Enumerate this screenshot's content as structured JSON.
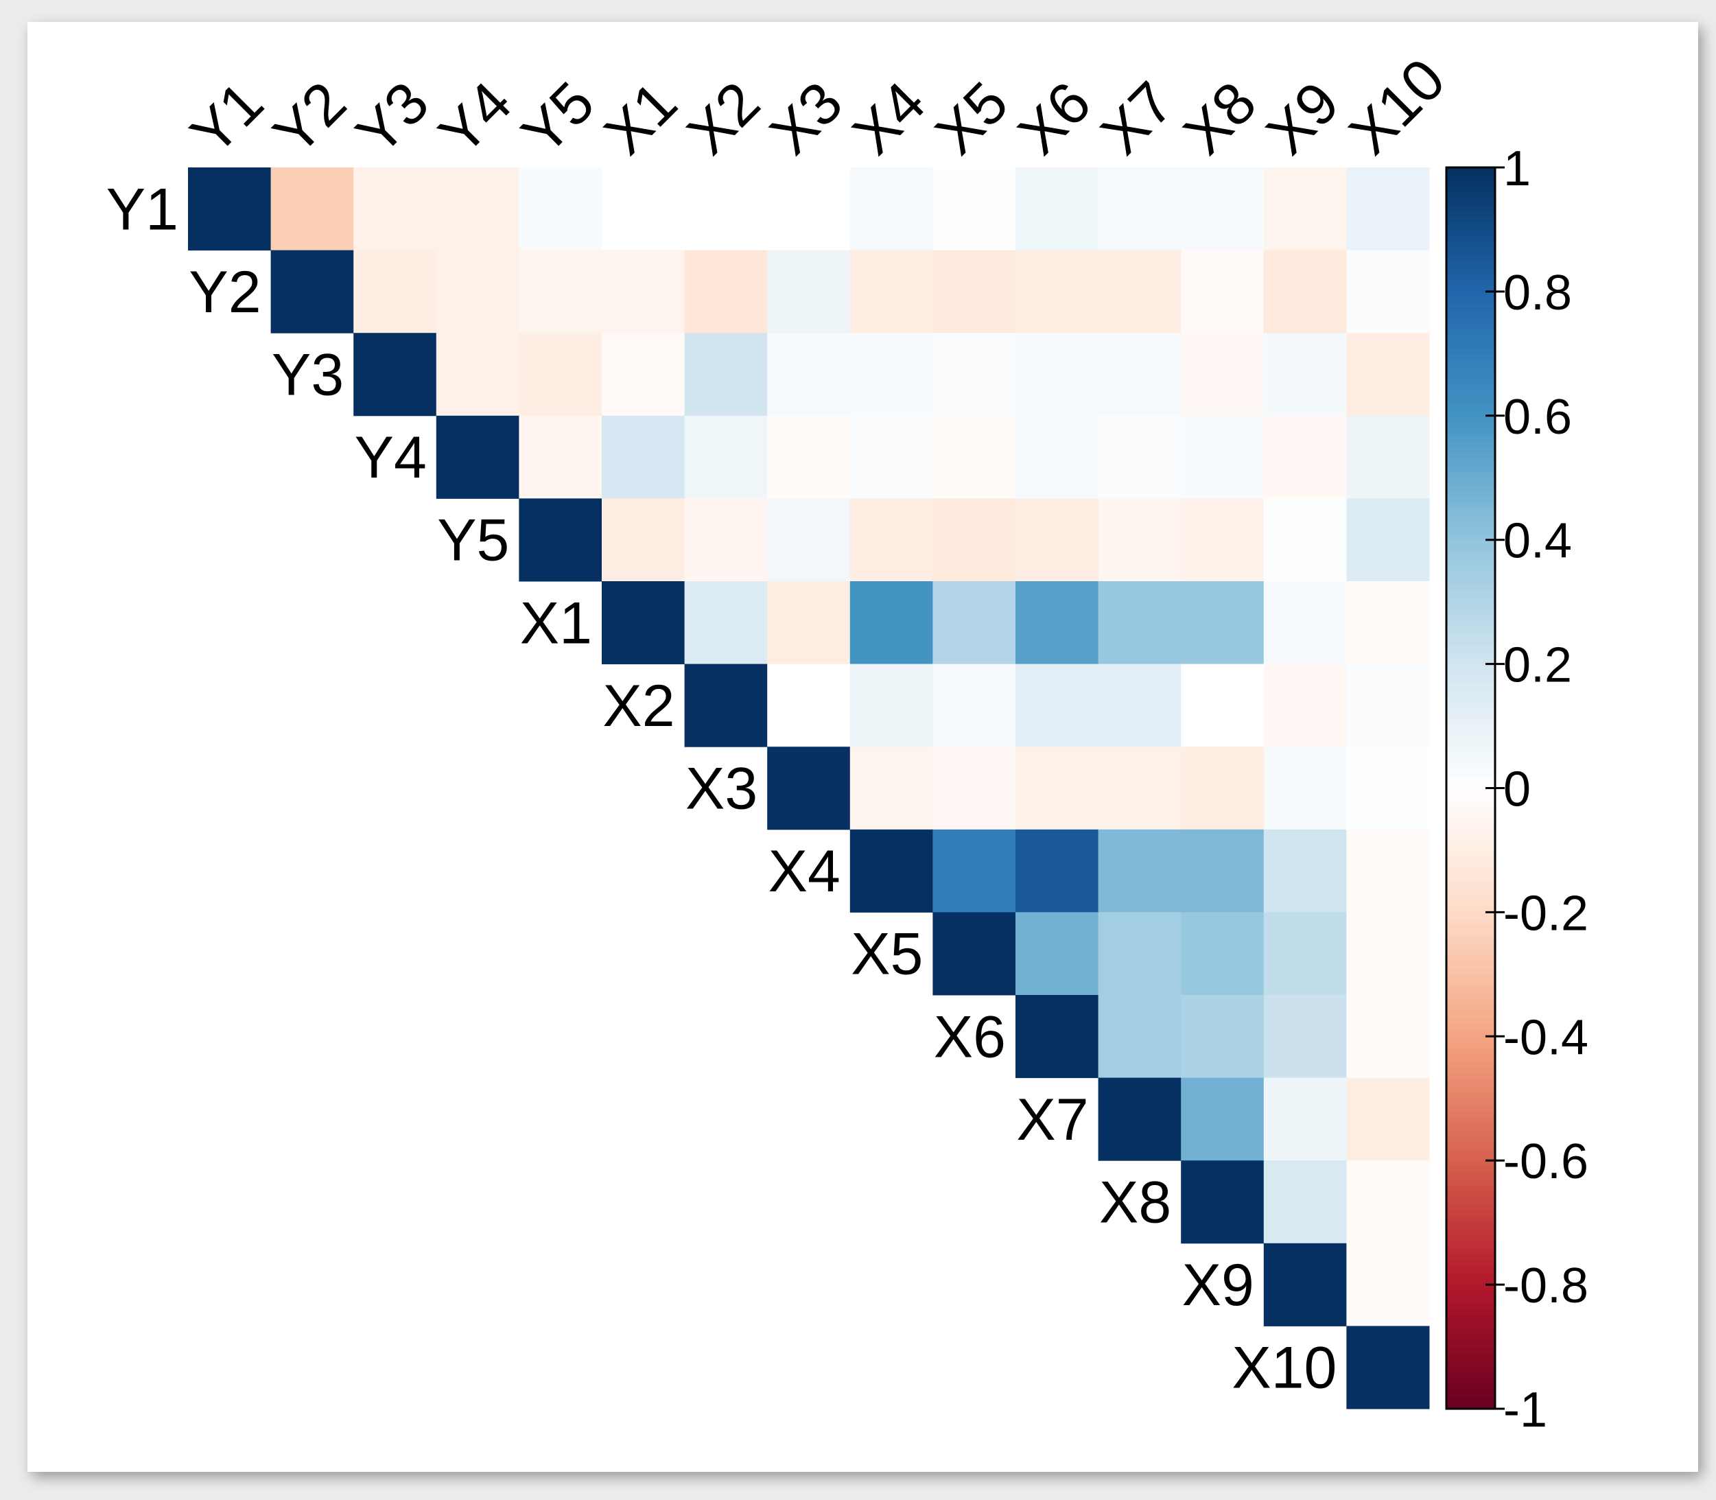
{
  "chart_data": {
    "type": "heatmap",
    "categories": [
      "Y1",
      "Y2",
      "Y3",
      "Y4",
      "Y5",
      "X1",
      "X2",
      "X3",
      "X4",
      "X5",
      "X6",
      "X7",
      "X8",
      "X9",
      "X10"
    ],
    "values": [
      [
        1,
        -0.25,
        -0.08,
        -0.08,
        0.03,
        0,
        0,
        0,
        0.04,
        0.01,
        0.07,
        0.04,
        0.04,
        -0.06,
        0.1
      ],
      [
        null,
        1,
        -0.1,
        -0.08,
        -0.06,
        -0.06,
        -0.14,
        0.08,
        -0.1,
        -0.12,
        -0.1,
        -0.1,
        -0.03,
        -0.12,
        0.02
      ],
      [
        null,
        null,
        1,
        -0.08,
        -0.1,
        -0.03,
        0.2,
        0.04,
        0.03,
        0.02,
        0.04,
        0.04,
        -0.04,
        0.05,
        -0.1
      ],
      [
        null,
        null,
        null,
        1,
        -0.05,
        0.18,
        0.07,
        -0.02,
        0.02,
        -0.02,
        0.04,
        0.02,
        0.03,
        -0.04,
        0.08
      ],
      [
        null,
        null,
        null,
        null,
        1,
        -0.1,
        -0.05,
        0.06,
        -0.1,
        -0.12,
        -0.1,
        -0.05,
        -0.07,
        0.01,
        0.15
      ],
      [
        null,
        null,
        null,
        null,
        null,
        1,
        0.15,
        -0.1,
        0.6,
        0.3,
        0.55,
        0.38,
        0.38,
        0.03,
        -0.03
      ],
      [
        null,
        null,
        null,
        null,
        null,
        null,
        1,
        0,
        0.08,
        0.04,
        0.12,
        0.12,
        0,
        -0.04,
        0.02
      ],
      [
        null,
        null,
        null,
        null,
        null,
        null,
        null,
        1,
        -0.06,
        -0.04,
        -0.08,
        -0.08,
        -0.1,
        0.04,
        0.01
      ],
      [
        null,
        null,
        null,
        null,
        null,
        null,
        null,
        null,
        1,
        0.7,
        0.85,
        0.45,
        0.45,
        0.2,
        -0.02
      ],
      [
        null,
        null,
        null,
        null,
        null,
        null,
        null,
        null,
        null,
        1,
        0.48,
        0.35,
        0.38,
        0.25,
        -0.02
      ],
      [
        null,
        null,
        null,
        null,
        null,
        null,
        null,
        null,
        null,
        null,
        1,
        0.35,
        0.32,
        0.22,
        -0.02
      ],
      [
        null,
        null,
        null,
        null,
        null,
        null,
        null,
        null,
        null,
        null,
        null,
        1,
        0.48,
        0.08,
        -0.1
      ],
      [
        null,
        null,
        null,
        null,
        null,
        null,
        null,
        null,
        null,
        null,
        null,
        null,
        1,
        0.17,
        -0.02
      ],
      [
        null,
        null,
        null,
        null,
        null,
        null,
        null,
        null,
        null,
        null,
        null,
        null,
        null,
        1,
        -0.02
      ],
      [
        null,
        null,
        null,
        null,
        null,
        null,
        null,
        null,
        null,
        null,
        null,
        null,
        null,
        null,
        1
      ]
    ],
    "zlim": [
      -1,
      1
    ],
    "zticks": [
      1,
      0.8,
      0.6,
      0.4,
      0.2,
      0,
      -0.2,
      -0.4,
      -0.6,
      -0.8,
      -1
    ],
    "colorscale": [
      "#67001F",
      "#B2182B",
      "#D6604D",
      "#F4A582",
      "#FDDBC7",
      "#FFFFFF",
      "#D1E5F0",
      "#92C5DE",
      "#4393C3",
      "#2166AC",
      "#053061"
    ]
  }
}
